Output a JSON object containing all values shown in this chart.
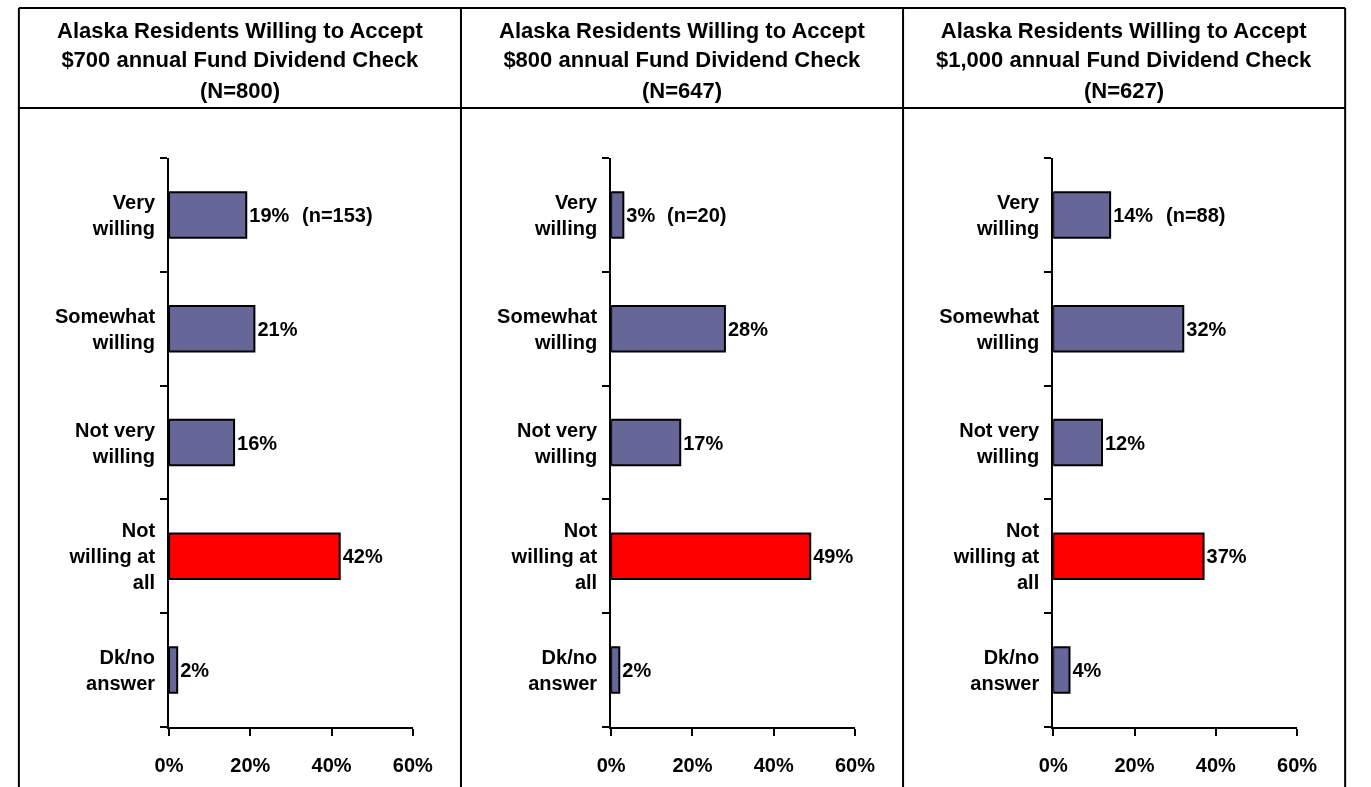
{
  "chart_data": [
    {
      "type": "bar",
      "orientation": "horizontal",
      "title": "Alaska Residents Willing to Accept $700 annual Fund Dividend Check",
      "subtitle": "(N=800)",
      "categories": [
        "Very willing",
        "Somewhat willing",
        "Not very willing",
        "Not willing at all",
        "Dk/no answer"
      ],
      "values": [
        19,
        21,
        16,
        42,
        2
      ],
      "colors": [
        "#666699",
        "#666699",
        "#666699",
        "#ff0000",
        "#666699"
      ],
      "value_labels": [
        "19%",
        "21%",
        "16%",
        "42%",
        "2%"
      ],
      "xlim": [
        0,
        60
      ],
      "xticks": [
        {
          "value": 0,
          "label": "0%"
        },
        {
          "value": 20,
          "label": "20%"
        },
        {
          "value": 40,
          "label": "40%"
        },
        {
          "value": 60,
          "label": "60%"
        }
      ],
      "annotations": [
        "(n=153)"
      ]
    },
    {
      "type": "bar",
      "orientation": "horizontal",
      "title": "Alaska Residents Willing to Accept $800 annual Fund Dividend Check",
      "subtitle": "(N=647)",
      "categories": [
        "Very willing",
        "Somewhat willing",
        "Not very willing",
        "Not willing at all",
        "Dk/no answer"
      ],
      "values": [
        3,
        28,
        17,
        49,
        2
      ],
      "colors": [
        "#666699",
        "#666699",
        "#666699",
        "#ff0000",
        "#666699"
      ],
      "value_labels": [
        "3%",
        "28%",
        "17%",
        "49%",
        "2%"
      ],
      "xlim": [
        0,
        60
      ],
      "xticks": [
        {
          "value": 0,
          "label": "0%"
        },
        {
          "value": 20,
          "label": "20%"
        },
        {
          "value": 40,
          "label": "40%"
        },
        {
          "value": 60,
          "label": "60%"
        }
      ],
      "annotations": [
        "(n=20)"
      ]
    },
    {
      "type": "bar",
      "orientation": "horizontal",
      "title": "Alaska Residents Willing to Accept $1,000 annual Fund Dividend Check",
      "subtitle": "(N=627)",
      "categories": [
        "Very willing",
        "Somewhat willing",
        "Not very willing",
        "Not willing at all",
        "Dk/no answer"
      ],
      "values": [
        14,
        32,
        12,
        37,
        4
      ],
      "colors": [
        "#666699",
        "#666699",
        "#666699",
        "#ff0000",
        "#666699"
      ],
      "value_labels": [
        "14%",
        "32%",
        "12%",
        "37%",
        "4%"
      ],
      "xlim": [
        0,
        60
      ],
      "xticks": [
        {
          "value": 0,
          "label": "0%"
        },
        {
          "value": 20,
          "label": "20%"
        },
        {
          "value": 40,
          "label": "40%"
        },
        {
          "value": 60,
          "label": "60%"
        }
      ],
      "annotations": [
        "(n=88)"
      ]
    }
  ]
}
